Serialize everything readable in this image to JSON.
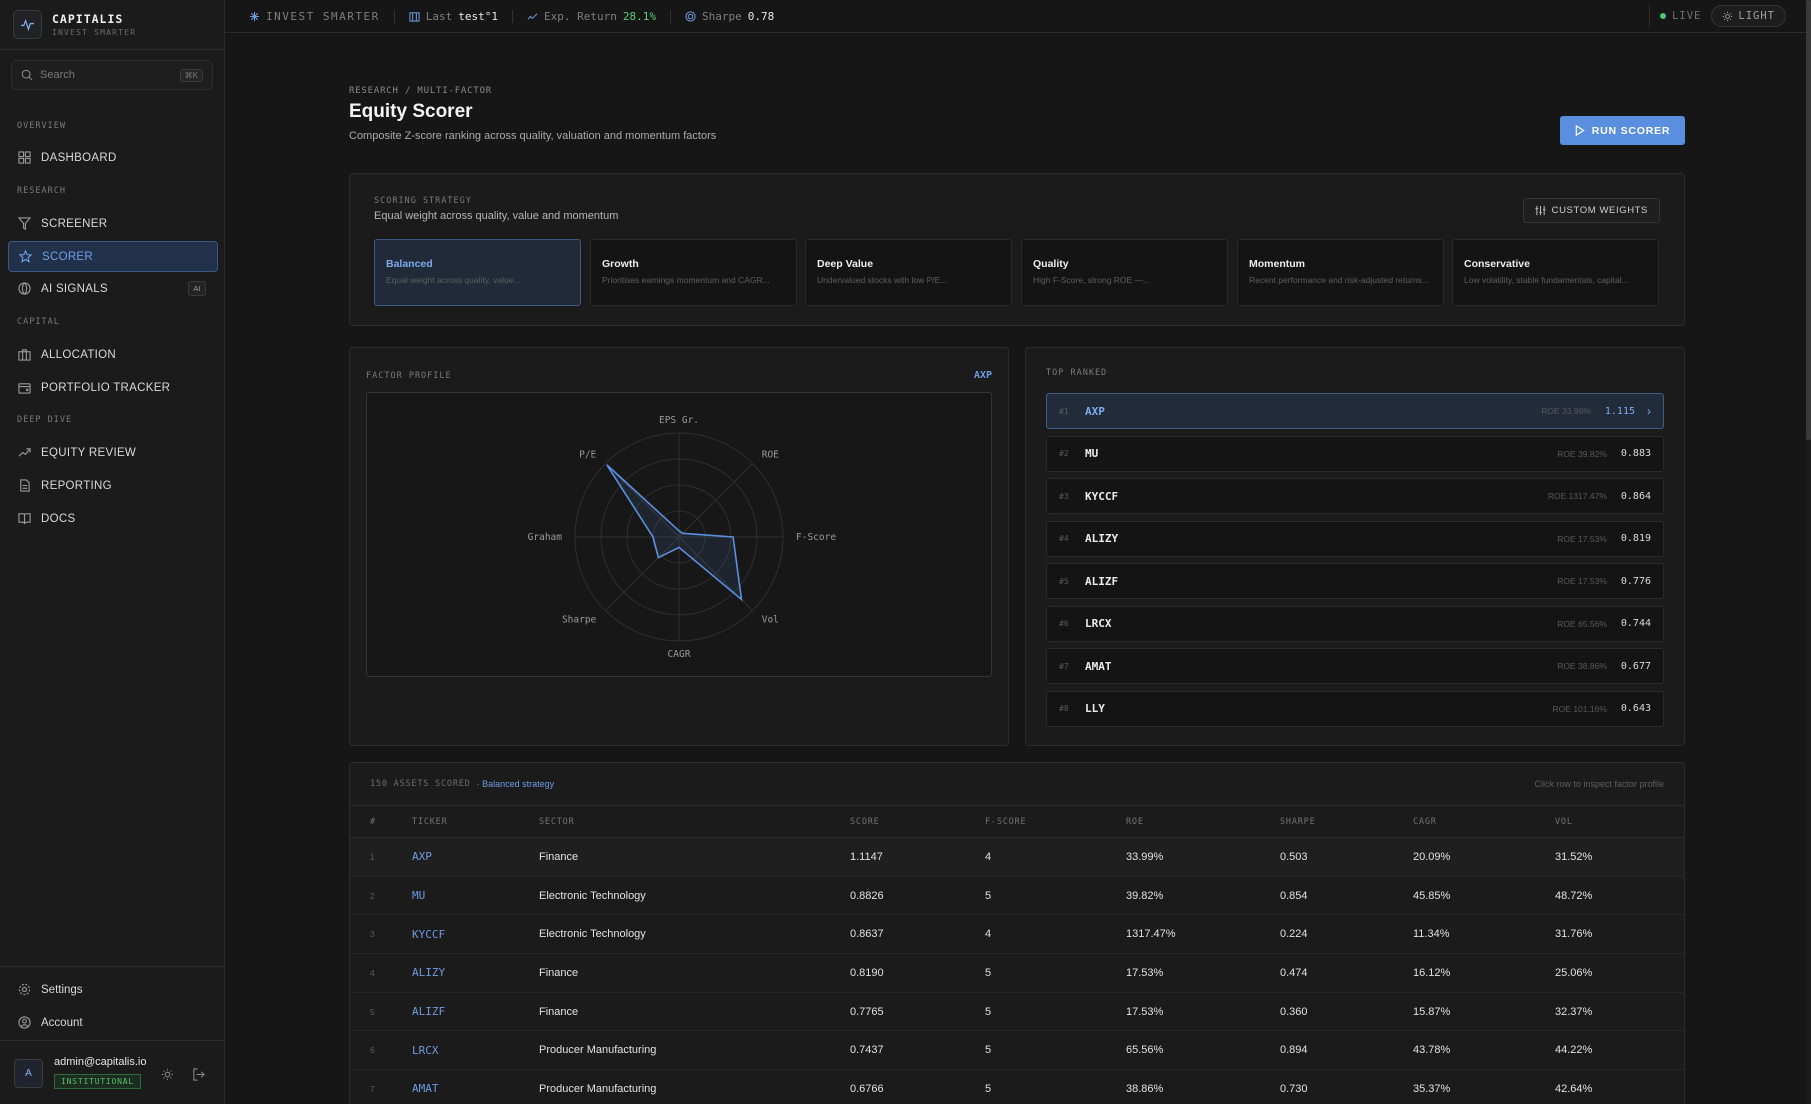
{
  "brand": {
    "name": "CAPITALIS",
    "tagline": "INVEST SMARTER"
  },
  "search": {
    "placeholder": "Search",
    "shortcut": "⌘K"
  },
  "nav": {
    "sections": [
      "OVERVIEW",
      "RESEARCH",
      "CAPITAL",
      "DEEP DIVE"
    ],
    "items": [
      {
        "label": "DASHBOARD",
        "icon": "grid-icon"
      },
      {
        "label": "SCREENER",
        "icon": "filter-icon"
      },
      {
        "label": "SCORER",
        "icon": "star-icon",
        "active": true
      },
      {
        "label": "AI SIGNALS",
        "icon": "signal-icon",
        "badge": "AI"
      },
      {
        "label": "ALLOCATION",
        "icon": "briefcase-icon"
      },
      {
        "label": "PORTFOLIO TRACKER",
        "icon": "wallet-icon"
      },
      {
        "label": "EQUITY REVIEW",
        "icon": "trending-up-icon"
      },
      {
        "label": "REPORTING",
        "icon": "file-icon"
      },
      {
        "label": "DOCS",
        "icon": "book-icon"
      }
    ],
    "bottom": [
      {
        "label": "Settings",
        "icon": "gear-icon"
      },
      {
        "label": "Account",
        "icon": "user-icon"
      }
    ]
  },
  "user": {
    "email": "admin@capitalis.io",
    "role": "INSTITUTIONAL",
    "initial": "A"
  },
  "topbar": {
    "tagline": "INVEST SMARTER",
    "last_label": "Last",
    "last_value": "test°1",
    "return_label": "Exp. Return",
    "return_value": "28.1%",
    "sharpe_label": "Sharpe",
    "sharpe_value": "0.78",
    "live": "LIVE",
    "theme": "LIGHT"
  },
  "header": {
    "breadcrumb": "RESEARCH / MULTI-FACTOR",
    "title": "Equity Scorer",
    "subtitle": "Composite Z-score ranking across quality, valuation and momentum factors",
    "run_label": "RUN SCORER"
  },
  "strategy": {
    "label": "SCORING STRATEGY",
    "desc": "Equal weight across quality, value and momentum",
    "custom_label": "CUSTOM WEIGHTS",
    "cards": [
      {
        "name": "Balanced",
        "desc": "Equal weight across quality, value...",
        "active": true
      },
      {
        "name": "Growth",
        "desc": "Prioritises earnings momentum and CAGR..."
      },
      {
        "name": "Deep Value",
        "desc": "Undervalued stocks with low P/E..."
      },
      {
        "name": "Quality",
        "desc": "High F-Score, strong ROE —..."
      },
      {
        "name": "Momentum",
        "desc": "Recent performance and risk-adjusted returns..."
      },
      {
        "name": "Conservative",
        "desc": "Low volatility, stable fundamentals, capital..."
      }
    ]
  },
  "factor_profile": {
    "label": "FACTOR PROFILE",
    "ticker": "AXP",
    "axes": [
      "EPS Gr.",
      "ROE",
      "F-Score",
      "Vol",
      "CAGR",
      "Sharpe",
      "Graham",
      "P/E"
    ],
    "values": [
      0.06,
      0.05,
      0.52,
      0.85,
      0.1,
      0.28,
      0.25,
      0.98
    ]
  },
  "top_ranked": {
    "label": "TOP RANKED",
    "rows": [
      {
        "rank": "#1",
        "ticker": "AXP",
        "roe": "ROE 33.99%",
        "score": "1.115",
        "active": true
      },
      {
        "rank": "#2",
        "ticker": "MU",
        "roe": "ROE 39.82%",
        "score": "0.883"
      },
      {
        "rank": "#3",
        "ticker": "KYCCF",
        "roe": "ROE 1317.47%",
        "score": "0.864"
      },
      {
        "rank": "#4",
        "ticker": "ALIZY",
        "roe": "ROE 17.53%",
        "score": "0.819"
      },
      {
        "rank": "#5",
        "ticker": "ALIZF",
        "roe": "ROE 17.53%",
        "score": "0.776"
      },
      {
        "rank": "#6",
        "ticker": "LRCX",
        "roe": "ROE 65.56%",
        "score": "0.744"
      },
      {
        "rank": "#7",
        "ticker": "AMAT",
        "roe": "ROE 38.86%",
        "score": "0.677"
      },
      {
        "rank": "#8",
        "ticker": "LLY",
        "roe": "ROE 101.16%",
        "score": "0.643"
      }
    ]
  },
  "table": {
    "count_label": "150 ASSETS SCORED",
    "strategy_tag": "· Balanced strategy",
    "hint": "Click row to inspect factor profile",
    "headers": [
      "#",
      "TICKER",
      "SECTOR",
      "SCORE",
      "F-SCORE",
      "ROE",
      "SHARPE",
      "CAGR",
      "VOL"
    ],
    "rows": [
      [
        "1",
        "AXP",
        "Finance",
        "1.1147",
        "4",
        "33.99%",
        "0.503",
        "20.09%",
        "31.52%"
      ],
      [
        "2",
        "MU",
        "Electronic Technology",
        "0.8826",
        "5",
        "39.82%",
        "0.854",
        "45.85%",
        "48.72%"
      ],
      [
        "3",
        "KYCCF",
        "Electronic Technology",
        "0.8637",
        "4",
        "1317.47%",
        "0.224",
        "11.34%",
        "31.76%"
      ],
      [
        "4",
        "ALIZY",
        "Finance",
        "0.8190",
        "5",
        "17.53%",
        "0.474",
        "16.12%",
        "25.06%"
      ],
      [
        "5",
        "ALIZF",
        "Finance",
        "0.7765",
        "5",
        "17.53%",
        "0.360",
        "15.87%",
        "32.37%"
      ],
      [
        "6",
        "LRCX",
        "Producer Manufacturing",
        "0.7437",
        "5",
        "65.56%",
        "0.894",
        "43.78%",
        "44.22%"
      ],
      [
        "7",
        "AMAT",
        "Producer Manufacturing",
        "0.6766",
        "5",
        "38.86%",
        "0.730",
        "35.37%",
        "42.64%"
      ]
    ]
  },
  "colors": {
    "accent": "#5a8fdf",
    "accent_text": "#6e9be0",
    "positive": "#5bd07a",
    "bg": "#161616",
    "panel": "#1b1b1b"
  }
}
